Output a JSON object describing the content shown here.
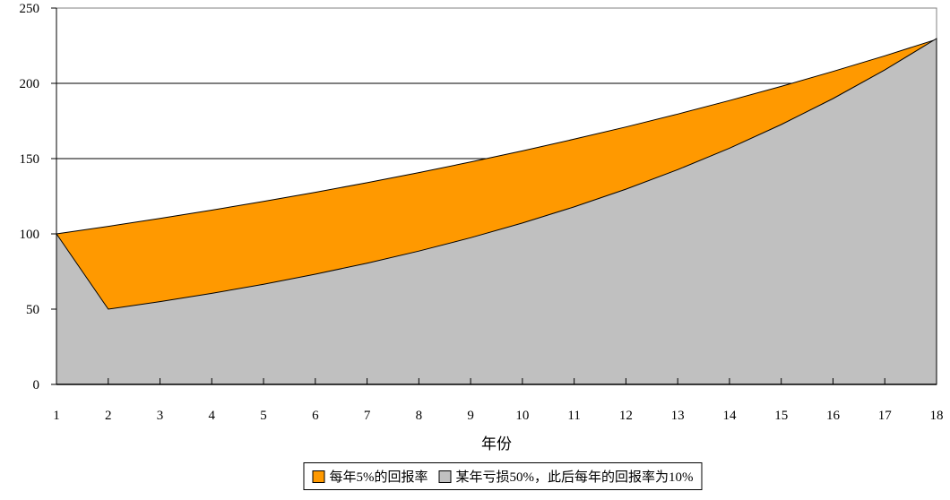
{
  "chart": {
    "x_axis_title": "年份",
    "colors": {
      "series1": "#FF9900",
      "series2": "#C0C0C0",
      "gridline": "#000000",
      "plot_border": "#808080",
      "axis": "#000000",
      "background": "#FFFFFF"
    }
  },
  "chart_data": {
    "type": "area",
    "title": "",
    "xlabel": "年份",
    "ylabel": "",
    "ylim": [
      0,
      250
    ],
    "y_ticks": [
      0,
      50,
      100,
      150,
      200,
      250
    ],
    "x": [
      1,
      2,
      3,
      4,
      5,
      6,
      7,
      8,
      9,
      10,
      11,
      12,
      13,
      14,
      15,
      16,
      17,
      18
    ],
    "grid": true,
    "legend_position": "bottom",
    "series": [
      {
        "name": "每年5%的回报率",
        "color": "#FF9900",
        "values": [
          100,
          105,
          110.25,
          115.76,
          121.55,
          127.63,
          134.01,
          140.71,
          147.75,
          155.13,
          162.89,
          171.03,
          179.59,
          188.56,
          197.99,
          207.89,
          218.29,
          229.2
        ]
      },
      {
        "name": "某年亏损50%，此后每年的回报率为10%",
        "color": "#C0C0C0",
        "values": [
          100,
          50,
          55,
          60.5,
          66.55,
          73.21,
          80.53,
          88.58,
          97.44,
          107.18,
          117.9,
          129.69,
          142.66,
          156.92,
          172.61,
          189.87,
          208.86,
          229.75
        ]
      }
    ]
  }
}
